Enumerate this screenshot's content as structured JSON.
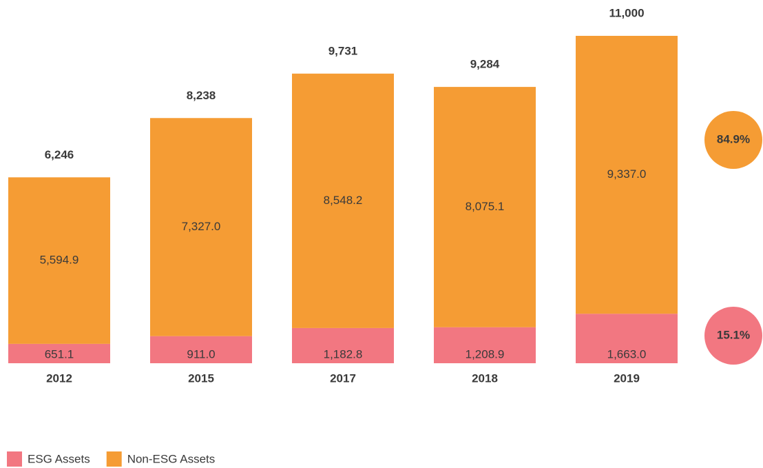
{
  "chart_data": {
    "type": "stacked-bar",
    "categories": [
      "2012",
      "2015",
      "2017",
      "2018",
      "2019"
    ],
    "series": [
      {
        "name": "ESG Assets",
        "color": "#f27781",
        "values": [
          651.1,
          911.0,
          1182.8,
          1208.9,
          1663.0
        ],
        "value_labels": [
          "651.1",
          "911.0",
          "1,182.8",
          "1,208.9",
          "1,663.0"
        ],
        "share": 15.1,
        "share_label": "15.1%"
      },
      {
        "name": "Non-ESG Assets",
        "color": "#f59c34",
        "values": [
          5594.9,
          7327.0,
          8548.2,
          8075.1,
          9337.0
        ],
        "value_labels": [
          "5,594.9",
          "7,327.0",
          "8,548.2",
          "8,075.1",
          "9,337.0"
        ],
        "share": 84.9,
        "share_label": "84.9%"
      }
    ],
    "totals": [
      6246,
      8238,
      9731,
      9284,
      11000
    ],
    "total_labels": [
      "6,246",
      "8,238",
      "9,731",
      "9,284",
      "11,000"
    ],
    "ylim": [
      0,
      11000
    ]
  }
}
